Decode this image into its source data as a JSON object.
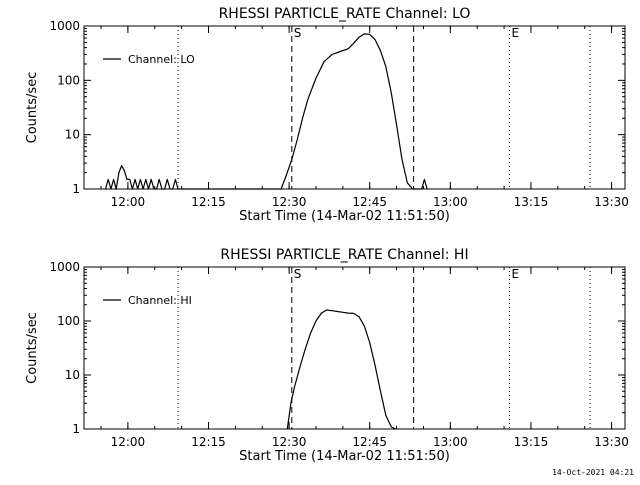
{
  "chart_data": [
    {
      "type": "line",
      "title": "RHESSI PARTICLE_RATE Channel: LO",
      "xlabel": "Start Time (14-Mar-02 11:51:50)",
      "ylabel": "Counts/sec",
      "yscale": "log",
      "ylim": [
        1,
        1000
      ],
      "xlim": [
        "11:51:50",
        "13:32:30"
      ],
      "x_ticks": [
        "12:00",
        "12:15",
        "12:30",
        "12:45",
        "13:00",
        "13:15",
        "13:30"
      ],
      "y_ticks": [
        "1",
        "10",
        "100",
        "1000"
      ],
      "legend": {
        "position": "top-left",
        "entries": [
          "Channel: LO"
        ]
      },
      "markers": [
        {
          "label": "S",
          "time": "12:30:30",
          "style": "dashed"
        },
        {
          "label": "",
          "time": "12:53:10",
          "style": "dashed"
        },
        {
          "label": "",
          "time": "12:09:20",
          "style": "dotted"
        },
        {
          "label": "E",
          "time": "13:11:00",
          "style": "dotted"
        },
        {
          "label": "",
          "time": "13:26:00",
          "style": "dotted"
        }
      ],
      "series": [
        {
          "name": "Channel: LO",
          "x": [
            "11:55:50",
            "11:56:20",
            "11:56:50",
            "11:57:20",
            "11:57:50",
            "11:58:20",
            "11:58:50",
            "11:59:20",
            "11:59:50",
            "12:00:20",
            "12:00:50",
            "12:01:20",
            "12:01:50",
            "12:02:20",
            "12:02:50",
            "12:03:20",
            "12:03:50",
            "12:04:20",
            "12:04:50",
            "12:05:20",
            "12:05:50",
            "12:06:20",
            "12:06:50",
            "12:07:20",
            "12:07:50",
            "12:08:20",
            "12:08:50",
            "12:09:20",
            "12:28:30",
            "12:29:30",
            "12:30:30",
            "12:31:30",
            "12:32:30",
            "12:33:30",
            "12:35:00",
            "12:36:30",
            "12:38:00",
            "12:39:30",
            "12:41:00",
            "12:42:00",
            "12:43:00",
            "12:44:00",
            "12:45:00",
            "12:46:00",
            "12:47:00",
            "12:48:00",
            "12:49:00",
            "12:50:00",
            "12:51:00",
            "12:52:00",
            "12:53:00",
            "12:53:40",
            "12:54:40",
            "12:55:10",
            "12:55:40"
          ],
          "y": [
            1,
            1.5,
            1,
            1.5,
            1,
            2,
            2.7,
            2.2,
            1.5,
            1.5,
            1,
            1.5,
            1,
            1.5,
            1,
            1.5,
            1,
            1.5,
            1,
            1,
            1.5,
            1,
            1,
            1.5,
            1,
            1,
            1.5,
            1,
            1,
            1.8,
            3.5,
            8,
            20,
            45,
            110,
            220,
            300,
            340,
            380,
            480,
            620,
            720,
            700,
            560,
            350,
            180,
            60,
            15,
            3.5,
            1.3,
            1,
            1,
            1,
            1.5,
            1
          ]
        }
      ]
    },
    {
      "type": "line",
      "title": "RHESSI PARTICLE_RATE Channel: HI",
      "xlabel": "Start Time (14-Mar-02 11:51:50)",
      "ylabel": "Counts/sec",
      "yscale": "log",
      "ylim": [
        1,
        1000
      ],
      "xlim": [
        "11:51:50",
        "13:32:30"
      ],
      "x_ticks": [
        "12:00",
        "12:15",
        "12:30",
        "12:45",
        "13:00",
        "13:15",
        "13:30"
      ],
      "y_ticks": [
        "1",
        "10",
        "100",
        "1000"
      ],
      "legend": {
        "position": "top-left",
        "entries": [
          "Channel: HI"
        ]
      },
      "markers": [
        {
          "label": "S",
          "time": "12:30:30",
          "style": "dashed"
        },
        {
          "label": "",
          "time": "12:53:10",
          "style": "dashed"
        },
        {
          "label": "",
          "time": "12:09:20",
          "style": "dotted"
        },
        {
          "label": "E",
          "time": "13:11:00",
          "style": "dotted"
        },
        {
          "label": "",
          "time": "13:26:00",
          "style": "dotted"
        }
      ],
      "series": [
        {
          "name": "Channel: HI",
          "x": [
            "12:29:40",
            "12:30:20",
            "12:31:00",
            "12:32:00",
            "12:33:00",
            "12:34:00",
            "12:35:00",
            "12:36:00",
            "12:37:00",
            "12:38:00",
            "12:39:00",
            "12:40:00",
            "12:41:00",
            "12:42:00",
            "12:43:00",
            "12:44:00",
            "12:45:00",
            "12:46:00",
            "12:47:00",
            "12:48:00",
            "12:49:00",
            "12:49:50"
          ],
          "y": [
            1,
            3,
            6,
            14,
            30,
            60,
            100,
            140,
            160,
            155,
            150,
            145,
            140,
            138,
            120,
            80,
            40,
            15,
            5,
            1.8,
            1.1,
            1
          ]
        }
      ]
    }
  ],
  "footer": {
    "timestamp": "14-Oct-2021 04:21"
  }
}
